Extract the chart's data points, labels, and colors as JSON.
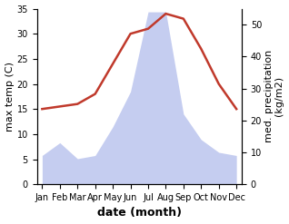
{
  "months": [
    "Jan",
    "Feb",
    "Mar",
    "Apr",
    "May",
    "Jun",
    "Jul",
    "Aug",
    "Sep",
    "Oct",
    "Nov",
    "Dec"
  ],
  "temperature": [
    15,
    15.5,
    16,
    18,
    24,
    30,
    31,
    34,
    33,
    27,
    20,
    15
  ],
  "precipitation": [
    9,
    13,
    8,
    9,
    18,
    29,
    54,
    54,
    22,
    14,
    10,
    9
  ],
  "temp_color": "#c0392b",
  "precip_fill_color": "#c5cdf0",
  "temp_ylim": [
    0,
    35
  ],
  "precip_ylim": [
    0,
    55
  ],
  "temp_yticks": [
    0,
    5,
    10,
    15,
    20,
    25,
    30,
    35
  ],
  "precip_yticks": [
    0,
    10,
    20,
    30,
    40,
    50
  ],
  "xlabel": "date (month)",
  "ylabel_left": "max temp (C)",
  "ylabel_right": "med. precipitation\n(kg/m2)",
  "axis_fontsize": 8,
  "tick_fontsize": 7
}
